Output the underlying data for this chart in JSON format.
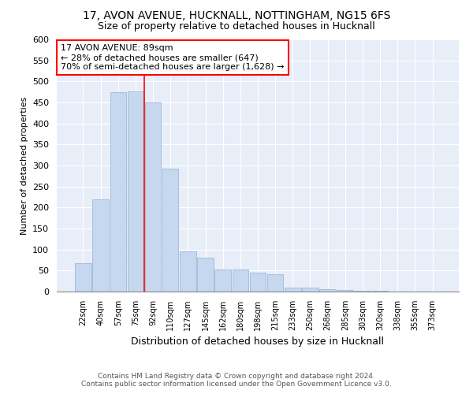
{
  "title": "17, AVON AVENUE, HUCKNALL, NOTTINGHAM, NG15 6FS",
  "subtitle": "Size of property relative to detached houses in Hucknall",
  "xlabel": "Distribution of detached houses by size in Hucknall",
  "ylabel": "Number of detached properties",
  "categories": [
    "22sqm",
    "40sqm",
    "57sqm",
    "75sqm",
    "92sqm",
    "110sqm",
    "127sqm",
    "145sqm",
    "162sqm",
    "180sqm",
    "198sqm",
    "215sqm",
    "233sqm",
    "250sqm",
    "268sqm",
    "285sqm",
    "303sqm",
    "320sqm",
    "338sqm",
    "355sqm",
    "373sqm"
  ],
  "values": [
    68,
    220,
    475,
    477,
    450,
    293,
    95,
    80,
    53,
    53,
    45,
    42,
    10,
    10,
    5,
    3,
    2,
    1,
    0,
    0,
    0
  ],
  "bar_color": "#c5d8ef",
  "vline_x": 3.5,
  "vline_color": "red",
  "annotation_text": "17 AVON AVENUE: 89sqm\n← 28% of detached houses are smaller (647)\n70% of semi-detached houses are larger (1,628) →",
  "annotation_box_color": "white",
  "annotation_box_edgecolor": "red",
  "ylim": [
    0,
    600
  ],
  "yticks": [
    0,
    50,
    100,
    150,
    200,
    250,
    300,
    350,
    400,
    450,
    500,
    550,
    600
  ],
  "background_color": "#e8eef8",
  "grid_color": "#ffffff",
  "footer_line1": "Contains HM Land Registry data © Crown copyright and database right 2024.",
  "footer_line2": "Contains public sector information licensed under the Open Government Licence v3.0.",
  "title_fontsize": 10,
  "subtitle_fontsize": 9,
  "bar_edgecolor": "#a0b8d8"
}
